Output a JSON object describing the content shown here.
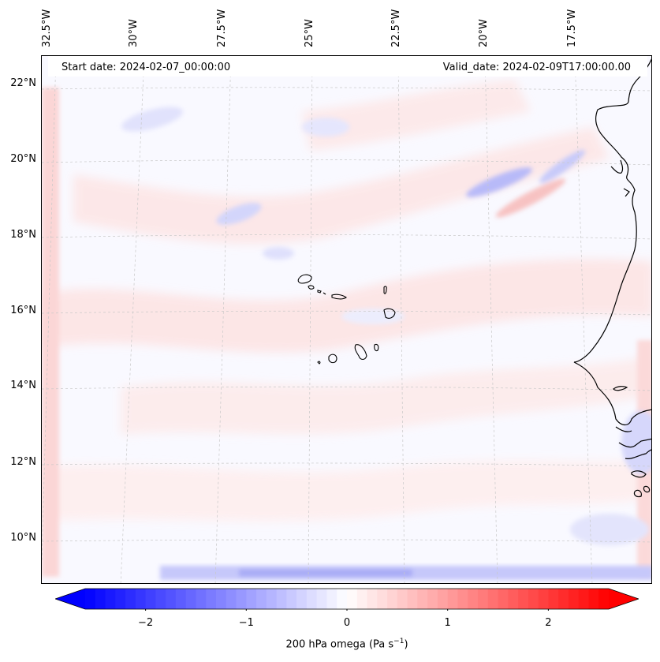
{
  "map": {
    "start_label": "Start date: 2024-02-07_00:00:00",
    "valid_label": "Valid_date: 2024-02-09T17:00:00.00",
    "variable": "200 hPa omega (Pa s⁻¹)",
    "projection": "Lambert conformal",
    "extent": {
      "lon_min": -33.3,
      "lon_max": -15.5,
      "lat_min": 8.8,
      "lat_max": 22.8
    },
    "longitude_ticks": [
      "32.5°W",
      "30°W",
      "27.5°W",
      "25°W",
      "22.5°W",
      "20°W",
      "17.5°W"
    ],
    "longitude_values": [
      -32.5,
      -30,
      -27.5,
      -25,
      -22.5,
      -20,
      -17.5
    ],
    "latitude_ticks": [
      "22°N",
      "20°N",
      "18°N",
      "16°N",
      "14°N",
      "12°N",
      "10°N"
    ],
    "latitude_values": [
      22,
      20,
      18,
      16,
      14,
      12,
      10
    ],
    "features": [
      "Cape Verde islands",
      "West African coastline (Senegal, Gambia, Guinea-Bissau)"
    ]
  },
  "colorbar": {
    "min": -2.6,
    "max": 2.6,
    "ticks": [
      -2,
      -1,
      0,
      1,
      2
    ],
    "tick_labels": [
      "−2",
      "−1",
      "0",
      "1",
      "2"
    ],
    "title_prefix": "200 hPa omega (Pa s",
    "title_exp": "−1",
    "title_suffix": ")",
    "colors": {
      "negative": "#0000ff",
      "neutral": "#ffffff",
      "positive": "#ff0000"
    }
  }
}
